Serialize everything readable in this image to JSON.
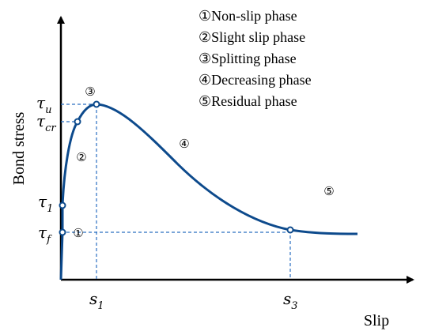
{
  "axes": {
    "y_label": "Bond stress",
    "x_label": "Slip"
  },
  "legend": [
    "①Non-slip phase",
    "②Slight slip phase",
    "③Splitting phase",
    "④Decreasing phase",
    "⑤Residual phase"
  ],
  "phase_markers": {
    "p1": "①",
    "p2": "②",
    "p3": "③",
    "p4": "④",
    "p5": "⑤"
  },
  "stress_ticks": {
    "tau_u": {
      "symbol": "τ",
      "sub": "u"
    },
    "tau_cr": {
      "symbol": "τ",
      "sub": "cr"
    },
    "tau_1": {
      "symbol": "τ",
      "sub": "1"
    },
    "tau_f": {
      "symbol": "τ",
      "sub": "f"
    }
  },
  "slip_ticks": {
    "s1": {
      "symbol": "s",
      "sub": "1"
    },
    "s3": {
      "symbol": "s",
      "sub": "3"
    }
  },
  "colors": {
    "curve": "#0d4a8c",
    "guides": "#2a6fc0",
    "axes": "#000000"
  }
}
